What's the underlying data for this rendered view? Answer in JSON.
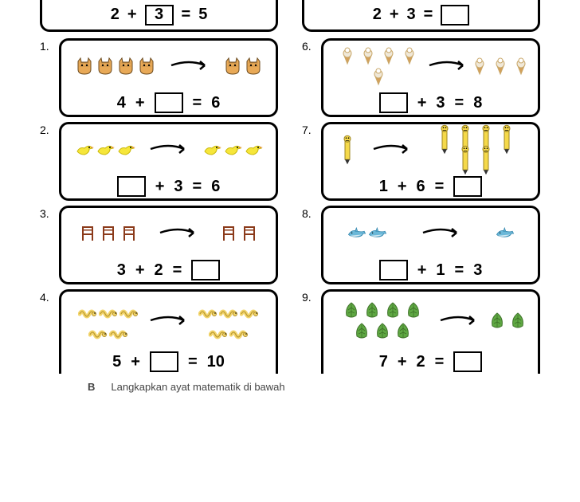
{
  "top_examples": {
    "left": {
      "a": "2",
      "op": "+",
      "b": "3",
      "eq": "=",
      "c": "5",
      "boxed_index": 1
    },
    "right": {
      "a": "2",
      "op": "+",
      "b": "3",
      "eq": "=",
      "c": "",
      "boxed_index": 2
    }
  },
  "problems": [
    {
      "num": "1.",
      "icon": "cat",
      "left_count": 4,
      "right_count": 2,
      "colors": {
        "fill": "#e8a957",
        "stroke": "#6b4a1f"
      },
      "eq": {
        "a": "4",
        "b": "",
        "c": "6",
        "blank": "b"
      }
    },
    {
      "num": "2.",
      "icon": "bird",
      "left_count": 3,
      "right_count": 3,
      "colors": {
        "fill": "#f6e63a",
        "stroke": "#c9b80a"
      },
      "eq": {
        "a": "",
        "b": "3",
        "c": "6",
        "blank": "a"
      }
    },
    {
      "num": "3.",
      "icon": "chair",
      "left_count": 3,
      "right_count": 2,
      "colors": {
        "fill": "#8b3a1a",
        "stroke": "#5a2410"
      },
      "eq": {
        "a": "3",
        "b": "2",
        "c": "",
        "blank": "c"
      }
    },
    {
      "num": "4.",
      "icon": "worm",
      "left_count": 5,
      "right_count": 5,
      "colors": {
        "fill": "#f2d46b",
        "stroke": "#b08f2a"
      },
      "eq": {
        "a": "5",
        "b": "",
        "c": "10",
        "blank": "b"
      },
      "partial_bottom": true
    },
    {
      "num": "6.",
      "icon": "icecream",
      "left_count": 5,
      "right_count": 3,
      "colors": {
        "fill": "#f0e8d8",
        "stroke": "#c9a86a"
      },
      "eq": {
        "a": "",
        "b": "3",
        "c": "8",
        "blank": "a"
      }
    },
    {
      "num": "7.",
      "icon": "pencil",
      "left_count": 1,
      "right_count": 6,
      "colors": {
        "fill": "#f5d94a",
        "stroke": "#9c8420"
      },
      "eq": {
        "a": "1",
        "b": "6",
        "c": "",
        "blank": "c"
      }
    },
    {
      "num": "8.",
      "icon": "dolphin",
      "left_count": 2,
      "right_count": 1,
      "colors": {
        "fill": "#6bb8d8",
        "stroke": "#2a7fa8"
      },
      "eq": {
        "a": "",
        "b": "1",
        "c": "3",
        "blank": "a"
      }
    },
    {
      "num": "9.",
      "icon": "leaf",
      "left_count": 7,
      "right_count": 2,
      "colors": {
        "fill": "#5fa843",
        "stroke": "#3d7028"
      },
      "eq": {
        "a": "7",
        "b": "2",
        "c": "",
        "blank": "c"
      },
      "partial_bottom": true
    }
  ],
  "bottom_text": "Langkapkan ayat matematik di bawah",
  "sep_label": "B",
  "op": "+",
  "eq": "="
}
